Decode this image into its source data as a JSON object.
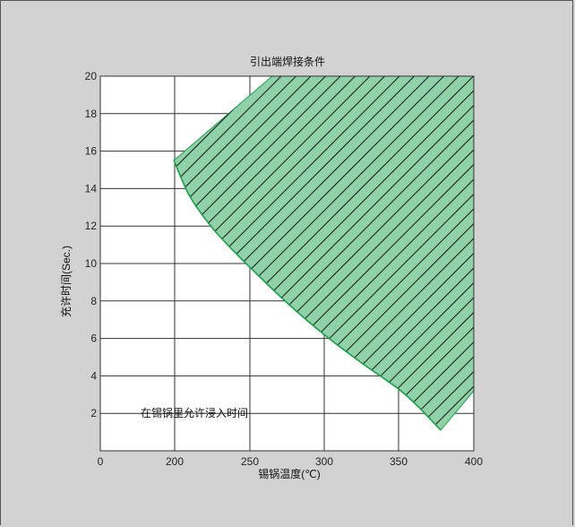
{
  "chart_data": {
    "type": "area",
    "title": "引出端焊接条件",
    "xlabel": "锡锅温度(℃)",
    "ylabel": "充许时间(Sec.)",
    "annotation": "在锡锅里允许浸入时间",
    "xlim": [
      0,
      400
    ],
    "ylim": [
      0,
      20
    ],
    "x_ticks": [
      "0",
      "200",
      "250",
      "300",
      "350",
      "400"
    ],
    "y_ticks": [
      "2",
      "4",
      "6",
      "8",
      "10",
      "12",
      "14",
      "16",
      "18",
      "20"
    ],
    "x_tick_values": [
      0,
      200,
      250,
      300,
      350,
      400
    ],
    "y_tick_values": [
      2,
      4,
      6,
      8,
      10,
      12,
      14,
      16,
      18,
      20
    ],
    "grid": true,
    "region": {
      "name": "在锡锅里允许浸入时间",
      "lower_boundary": [
        {
          "x": 198,
          "y": 15.5
        },
        {
          "x": 210,
          "y": 13.6
        },
        {
          "x": 225,
          "y": 11.9
        },
        {
          "x": 240,
          "y": 10.6
        },
        {
          "x": 250,
          "y": 9.8
        },
        {
          "x": 275,
          "y": 7.9
        },
        {
          "x": 300,
          "y": 6.2
        },
        {
          "x": 325,
          "y": 4.7
        },
        {
          "x": 350,
          "y": 3.3
        },
        {
          "x": 365,
          "y": 2.2
        },
        {
          "x": 378,
          "y": 1.1
        }
      ],
      "upper_left_boundary": [
        {
          "x": 198,
          "y": 15.5
        },
        {
          "x": 265,
          "y": 20
        }
      ],
      "right_boundary": [
        {
          "x": 400,
          "y": 20
        },
        {
          "x": 400,
          "y": 3.2
        },
        {
          "x": 378,
          "y": 1.1
        }
      ],
      "fill_color": "#8fd1a8",
      "edge_color": "#1e9e4a",
      "hatch_color": "#1a1a1a"
    }
  }
}
